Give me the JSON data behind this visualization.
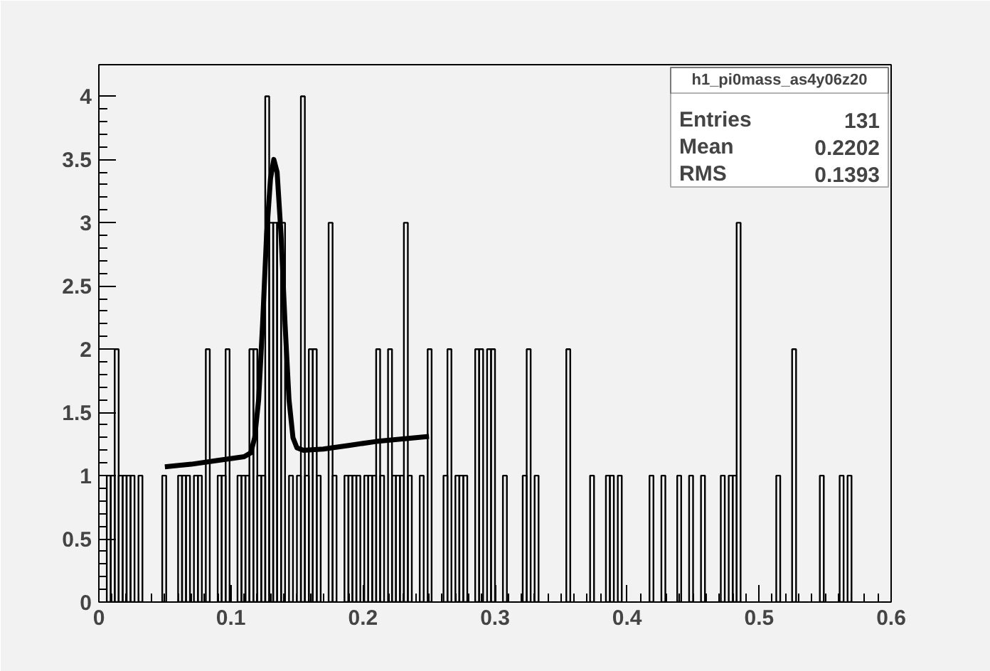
{
  "chart_data": {
    "type": "histogram",
    "bins": [
      0,
      0.003,
      0.006,
      0.009,
      0.012,
      0.015,
      0.018,
      0.021,
      0.024,
      0.027,
      0.03,
      0.033,
      0.036,
      0.039,
      0.042,
      0.045,
      0.048,
      0.051,
      0.054,
      0.057,
      0.06,
      0.063,
      0.066,
      0.069,
      0.072,
      0.075,
      0.078,
      0.081,
      0.084,
      0.087,
      0.09,
      0.093,
      0.096,
      0.099,
      0.102,
      0.105,
      0.108,
      0.111,
      0.114,
      0.117,
      0.12,
      0.123,
      0.126,
      0.129,
      0.132,
      0.135,
      0.138,
      0.141,
      0.144,
      0.147,
      0.15,
      0.153,
      0.156,
      0.159,
      0.162,
      0.165,
      0.168,
      0.171,
      0.174,
      0.177,
      0.18,
      0.183,
      0.186,
      0.189,
      0.192,
      0.195,
      0.198,
      0.201,
      0.204,
      0.207,
      0.21,
      0.213,
      0.216,
      0.219,
      0.222,
      0.225,
      0.228,
      0.231,
      0.234,
      0.237,
      0.24,
      0.243,
      0.246,
      0.249,
      0.252,
      0.255,
      0.258,
      0.261,
      0.264,
      0.267,
      0.27,
      0.273,
      0.276,
      0.279,
      0.282,
      0.285,
      0.288,
      0.291,
      0.294,
      0.297,
      0.3,
      0.303,
      0.306,
      0.309,
      0.312,
      0.315,
      0.318,
      0.321,
      0.324,
      0.327,
      0.33,
      0.333,
      0.336,
      0.339,
      0.342,
      0.345,
      0.348,
      0.351,
      0.354,
      0.357,
      0.36,
      0.363,
      0.366,
      0.369,
      0.372,
      0.375,
      0.378,
      0.381,
      0.384,
      0.387,
      0.39,
      0.393,
      0.396,
      0.399,
      0.402,
      0.405,
      0.408,
      0.411,
      0.414,
      0.417,
      0.42,
      0.423,
      0.426,
      0.429,
      0.432,
      0.435,
      0.438,
      0.441,
      0.444,
      0.447,
      0.45,
      0.453,
      0.456,
      0.459,
      0.462,
      0.465,
      0.468,
      0.471,
      0.474,
      0.477,
      0.48,
      0.483,
      0.486,
      0.489,
      0.492,
      0.495,
      0.498,
      0.501,
      0.504,
      0.507,
      0.51,
      0.513,
      0.516,
      0.519,
      0.522,
      0.525,
      0.528,
      0.531,
      0.534,
      0.537,
      0.54,
      0.543,
      0.546,
      0.549,
      0.552,
      0.555,
      0.558,
      0.561,
      0.564,
      0.567,
      0.57,
      0.573,
      0.576,
      0.579,
      0.582,
      0.585,
      0.588,
      0.591,
      0.594,
      0.597,
      0.6
    ],
    "values": [
      0,
      0,
      1,
      1,
      2,
      1,
      1,
      1,
      1,
      0,
      1,
      0,
      0,
      0,
      0,
      0,
      1,
      0,
      0,
      0,
      1,
      1,
      1,
      0,
      1,
      1,
      0,
      2,
      0,
      0,
      1,
      1,
      2,
      0,
      0,
      1,
      1,
      1,
      2,
      2,
      1,
      1,
      4,
      3,
      3,
      3,
      3,
      0,
      1,
      0,
      1,
      4,
      1,
      2,
      2,
      1,
      0,
      0,
      3,
      1,
      0,
      0,
      1,
      1,
      1,
      1,
      0,
      1,
      1,
      1,
      2,
      1,
      0,
      2,
      1,
      1,
      1,
      3,
      1,
      0,
      0,
      1,
      0,
      2,
      0,
      0,
      0,
      1,
      2,
      0,
      1,
      1,
      1,
      0,
      0,
      2,
      2,
      0,
      2,
      2,
      0,
      0,
      1,
      0,
      0,
      0,
      0,
      1,
      2,
      0,
      1,
      0,
      0,
      0,
      0,
      0,
      0,
      0,
      2,
      0,
      0,
      0,
      0,
      0,
      1,
      0,
      0,
      0,
      1,
      1,
      0,
      1,
      0,
      0,
      0,
      0,
      0,
      0,
      0,
      1,
      0,
      0,
      1,
      0,
      0,
      0,
      1,
      0,
      0,
      1,
      0,
      0,
      1,
      0,
      0,
      0,
      0,
      1,
      0,
      1,
      1,
      3,
      0,
      0,
      0,
      0,
      0,
      0,
      0,
      0,
      0,
      1,
      0,
      0,
      0,
      2,
      0,
      0,
      0,
      0,
      0,
      0,
      1,
      0,
      0,
      0,
      0,
      1,
      0,
      1,
      0,
      0,
      0,
      0,
      0,
      0,
      0,
      0,
      0,
      0
    ],
    "color": "#000000",
    "series": [
      {
        "type": "line",
        "color": "#000000",
        "x": [
          0.05,
          0.07,
          0.09,
          0.11,
          0.115,
          0.118,
          0.121,
          0.124,
          0.127,
          0.13,
          0.1325,
          0.135,
          0.138,
          0.141,
          0.144,
          0.147,
          0.15,
          0.155,
          0.17,
          0.19,
          0.21,
          0.23,
          0.25
        ],
        "values": [
          1.07,
          1.09,
          1.12,
          1.15,
          1.18,
          1.3,
          1.6,
          2.2,
          2.9,
          3.35,
          3.5,
          3.4,
          2.9,
          2.2,
          1.6,
          1.3,
          1.22,
          1.2,
          1.21,
          1.24,
          1.27,
          1.29,
          1.31
        ]
      }
    ],
    "xlim": [
      0,
      0.6
    ],
    "ylim": [
      0,
      4.25
    ],
    "xticks": [
      0,
      0.1,
      0.2,
      0.3,
      0.4,
      0.5,
      0.6
    ],
    "yticks": [
      0,
      0.5,
      1,
      1.5,
      2,
      2.5,
      3,
      3.5,
      4
    ],
    "annotations": [
      "h1_pi0mass_as4y06z20",
      "Entries",
      "131",
      "Mean",
      "0.2202",
      "RMS",
      "0.1393"
    ]
  }
}
